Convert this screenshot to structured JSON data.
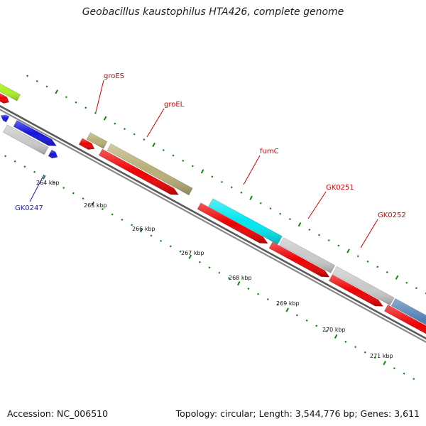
{
  "title": "Geobacillus kaustophilus HTA426, complete genome",
  "footer": {
    "accession": "Accession: NC_006510",
    "summary": "Topology: circular; Length: 3,544,776 bp; Genes: 3,611"
  },
  "ticks": [
    "264 kbp",
    "265 kbp",
    "266 kbp",
    "267 kbp",
    "268 kbp",
    "269 kbp",
    "270 kbp",
    "271 kbp"
  ],
  "gene_labels": {
    "groES": "groES",
    "groEL": "groEL",
    "fumC": "fumC",
    "GK0251": "GK0251",
    "GK0252": "GK0252",
    "GK0247": "GK0247"
  },
  "colors": {
    "cds_red": "#ee0000",
    "cds_blue": "#1515dd",
    "chaperone_olive": "#b8ae76",
    "fumarase_cyan": "#00e6ee",
    "hypothetical_grey": "#c9c9c9",
    "steelblue": "#4f7fb5",
    "lime": "#aaee22",
    "backbone": "#777777",
    "tick_green": "#118811",
    "label_red": "#cc0000",
    "label_blue": "#1a1acc"
  }
}
